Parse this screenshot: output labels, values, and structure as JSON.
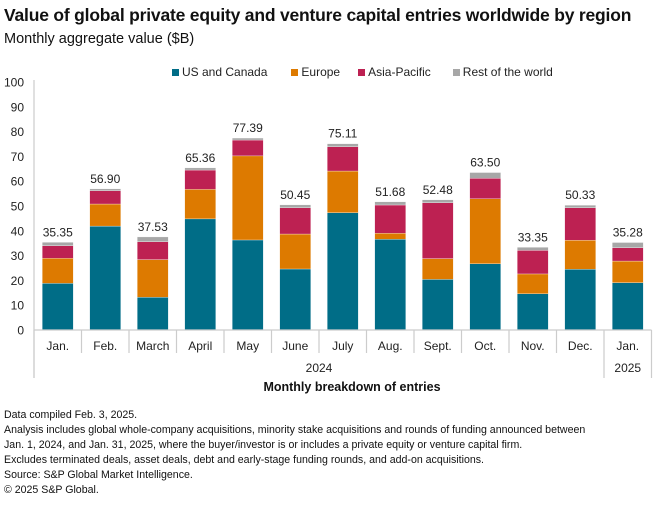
{
  "header": {
    "title": "Value of global private equity and venture capital entries worldwide by region",
    "subtitle": "Monthly aggregate value ($B)"
  },
  "chart_data": {
    "type": "bar",
    "stacked": true,
    "title": "Value of global private equity and venture capital entries worldwide by region",
    "subtitle": "Monthly aggregate value ($B)",
    "xlabel": "Monthly breakdown of entries",
    "ylabel": "",
    "ylim": [
      0,
      100
    ],
    "yticks": [
      0,
      10,
      20,
      30,
      40,
      50,
      60,
      70,
      80,
      90,
      100
    ],
    "grid": false,
    "legend_position": "top-center",
    "categories": [
      "Jan.",
      "Feb.",
      "March",
      "April",
      "May",
      "June",
      "July",
      "Aug.",
      "Sept.",
      "Oct.",
      "Nov.",
      "Dec.",
      "Jan."
    ],
    "year_groups": [
      {
        "label": "2024",
        "start": 0,
        "end": 11
      },
      {
        "label": "2025",
        "start": 12,
        "end": 12
      }
    ],
    "series": [
      {
        "name": "US and Canada",
        "color": "#006D87",
        "values": [
          18.8,
          41.9,
          13.2,
          44.8,
          36.3,
          24.6,
          47.3,
          36.6,
          20.4,
          26.7,
          14.6,
          24.5,
          19.1
        ]
      },
      {
        "name": "Europe",
        "color": "#DD7A00",
        "values": [
          10.1,
          8.9,
          15.2,
          11.9,
          33.9,
          14.1,
          16.8,
          2.4,
          8.4,
          26.2,
          8.0,
          11.7,
          8.7
        ]
      },
      {
        "name": "Asia-Pacific",
        "color": "#BD2152",
        "values": [
          5.1,
          5.4,
          7.2,
          7.8,
          6.4,
          10.6,
          9.8,
          11.4,
          22.5,
          8.3,
          9.5,
          13.1,
          5.4
        ]
      },
      {
        "name": "Rest of the world",
        "color": "#A7A7A7",
        "values": [
          1.35,
          0.7,
          1.93,
          0.86,
          0.79,
          1.15,
          1.21,
          1.28,
          1.18,
          2.3,
          1.25,
          1.03,
          2.08
        ]
      }
    ],
    "totals": [
      35.35,
      56.9,
      37.53,
      65.36,
      77.39,
      50.45,
      75.11,
      51.68,
      52.48,
      63.5,
      33.35,
      50.33,
      35.28
    ],
    "total_labels": [
      "35.35",
      "56.90",
      "37.53",
      "65.36",
      "77.39",
      "50.45",
      "75.11",
      "51.68",
      "52.48",
      "63.50",
      "33.35",
      "50.33",
      "35.28"
    ]
  },
  "legend": [
    {
      "label": "US and Canada",
      "color": "#006D87"
    },
    {
      "label": "Europe",
      "color": "#DD7A00"
    },
    {
      "label": "Asia-Pacific",
      "color": "#BD2152"
    },
    {
      "label": "Rest of the world",
      "color": "#A7A7A7"
    }
  ],
  "footnotes": [
    "Data compiled Feb. 3, 2025.",
    "Analysis includes global whole-company acquisitions, minority stake acquisitions and rounds of funding announced between",
    "Jan. 1, 2024, and Jan. 31, 2025, where the buyer/investor is or includes a private equity or venture capital firm.",
    "Excludes terminated deals, asset deals, debt and early-stage funding rounds, and add-on acquisitions.",
    "Source: S&P Global Market Intelligence.",
    "© 2025 S&P Global."
  ]
}
